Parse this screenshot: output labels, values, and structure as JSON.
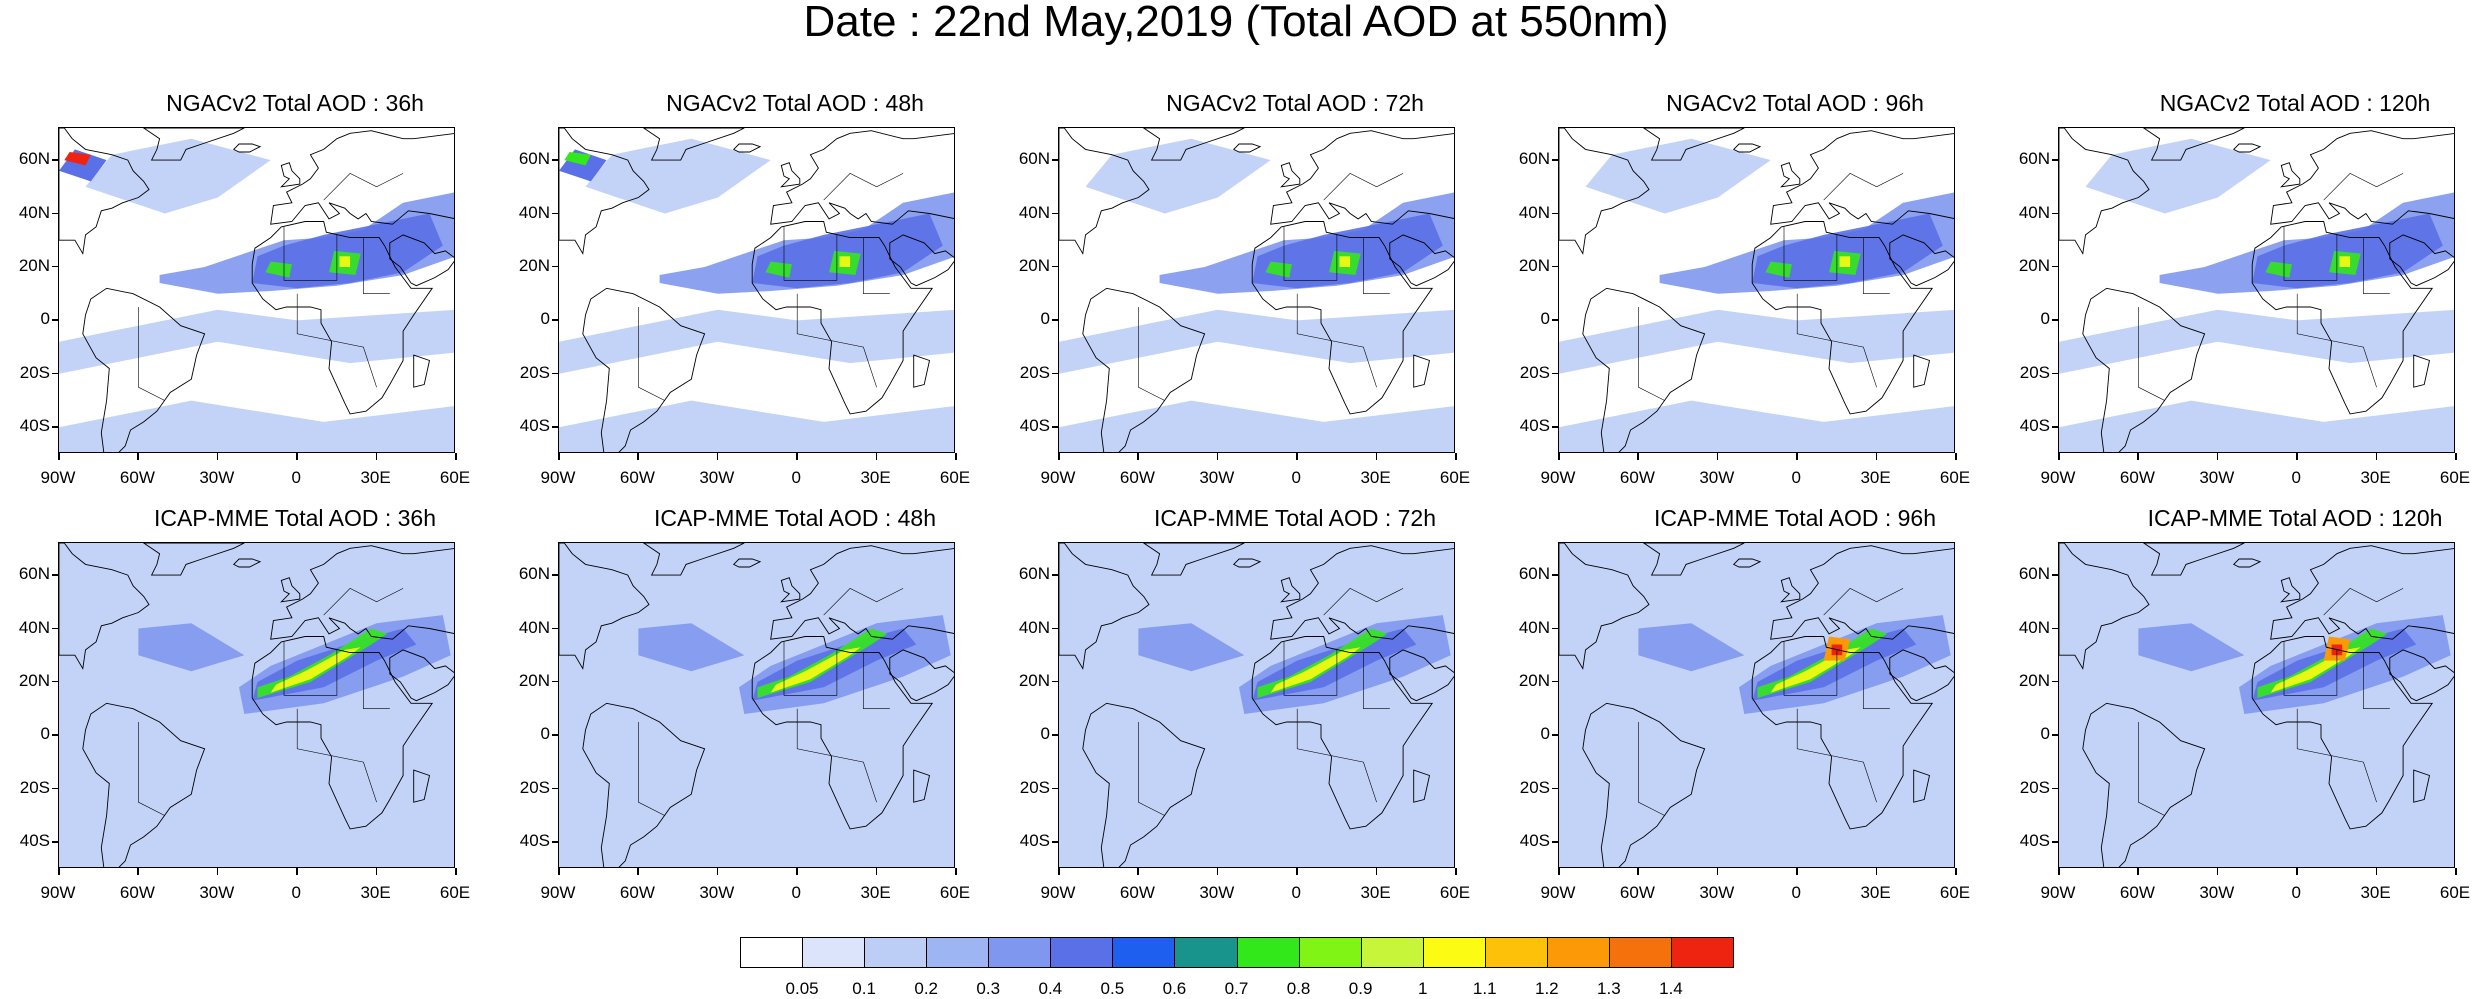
{
  "title": "Date : 22nd May,2019 (Total AOD at 550nm)",
  "lat_labels": [
    "60N",
    "40N",
    "20N",
    "0",
    "20S",
    "40S"
  ],
  "lon_labels": [
    "90W",
    "60W",
    "30W",
    "0",
    "30E",
    "60E"
  ],
  "panels": [
    {
      "title": "NGACv2 Total AOD : 36h",
      "model": "NGACv2",
      "hour": 36
    },
    {
      "title": "NGACv2 Total AOD : 48h",
      "model": "NGACv2",
      "hour": 48
    },
    {
      "title": "NGACv2 Total AOD : 72h",
      "model": "NGACv2",
      "hour": 72
    },
    {
      "title": "NGACv2 Total AOD : 96h",
      "model": "NGACv2",
      "hour": 96
    },
    {
      "title": "NGACv2 Total AOD : 120h",
      "model": "NGACv2",
      "hour": 120
    },
    {
      "title": "ICAP-MME Total AOD : 36h",
      "model": "ICAP-MME",
      "hour": 36
    },
    {
      "title": "ICAP-MME Total AOD : 48h",
      "model": "ICAP-MME",
      "hour": 48
    },
    {
      "title": "ICAP-MME Total AOD : 72h",
      "model": "ICAP-MME",
      "hour": 72
    },
    {
      "title": "ICAP-MME Total AOD : 96h",
      "model": "ICAP-MME",
      "hour": 96
    },
    {
      "title": "ICAP-MME Total AOD : 120h",
      "model": "ICAP-MME",
      "hour": 120
    }
  ],
  "colorbar": {
    "labels": [
      "0.05",
      "0.1",
      "0.2",
      "0.3",
      "0.4",
      "0.5",
      "0.6",
      "0.7",
      "0.8",
      "0.9",
      "1",
      "1.1",
      "1.2",
      "1.3",
      "1.4"
    ],
    "colors": [
      "#ffffff",
      "#dbe4fb",
      "#bccdf6",
      "#9db6f3",
      "#7f97ee",
      "#5a70e6",
      "#1f5ff0",
      "#18948d",
      "#33e81a",
      "#80f414",
      "#c6f53a",
      "#fbfb13",
      "#fdc10a",
      "#fb9a06",
      "#f5710c",
      "#ef2410"
    ]
  },
  "plume_colors": {
    "light": "#bccdf6",
    "medium": "#7f97ee",
    "dark": "#5a70e6",
    "green": "#33e81a",
    "yellow": "#fbfb13",
    "orange": "#fb9a06",
    "red": "#ef2410"
  }
}
